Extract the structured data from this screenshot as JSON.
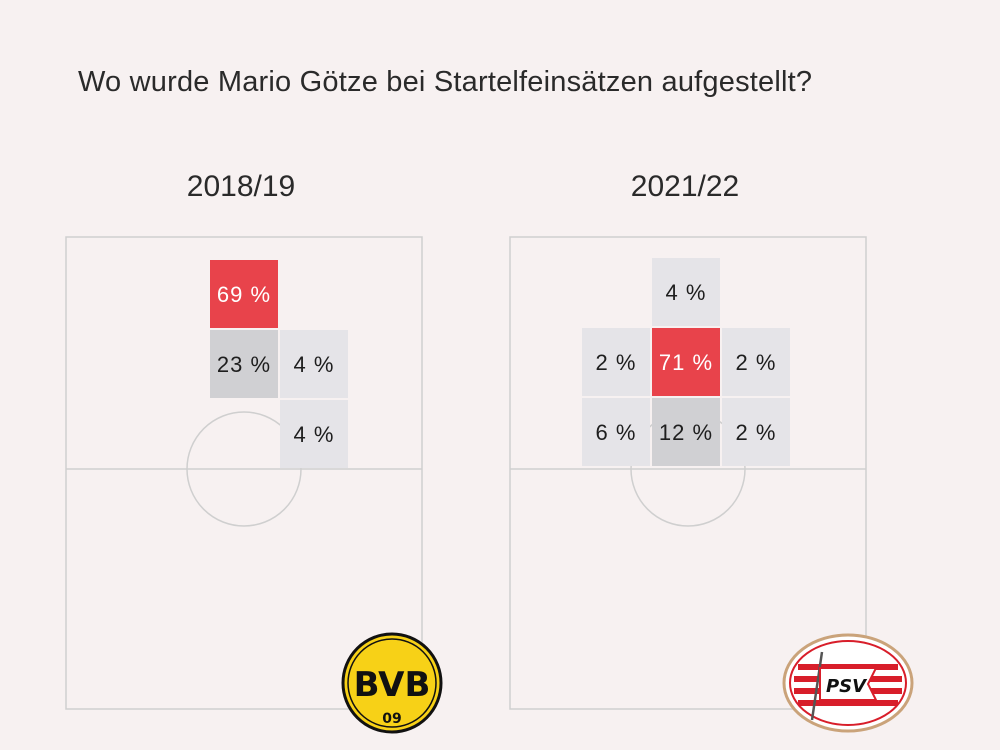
{
  "title": "Wo wurde Mario Götze bei Startelfeinsätzen aufgestellt?",
  "colors": {
    "highlight": "#e8434b",
    "medium": "#d0d0d3",
    "light": "#e5e4e8",
    "background": "#f7f1f1",
    "pitch_line": "#cfcfcf",
    "bvb_yellow": "#f7d117",
    "psv_red": "#d81e2a"
  },
  "chart_data": [
    {
      "type": "heatmap",
      "title": "2018/19",
      "team_logo": "BVB 09",
      "cells": [
        {
          "col": 0,
          "row": 0,
          "label": "69 %",
          "value": 69,
          "shade": "highlight"
        },
        {
          "col": 0,
          "row": 1,
          "label": "23 %",
          "value": 23,
          "shade": "medium"
        },
        {
          "col": 1,
          "row": 1,
          "label": "4 %",
          "value": 4,
          "shade": "light"
        },
        {
          "col": 1,
          "row": 2,
          "label": "4 %",
          "value": 4,
          "shade": "light"
        }
      ]
    },
    {
      "type": "heatmap",
      "title": "2021/22",
      "team_logo": "PSV",
      "cells": [
        {
          "col": 1,
          "row": 0,
          "label": "4 %",
          "value": 4,
          "shade": "light"
        },
        {
          "col": 0,
          "row": 1,
          "label": "2 %",
          "value": 2,
          "shade": "light"
        },
        {
          "col": 1,
          "row": 1,
          "label": "71 %",
          "value": 71,
          "shade": "highlight"
        },
        {
          "col": 2,
          "row": 1,
          "label": "2 %",
          "value": 2,
          "shade": "light"
        },
        {
          "col": 0,
          "row": 2,
          "label": "6 %",
          "value": 6,
          "shade": "light"
        },
        {
          "col": 1,
          "row": 2,
          "label": "12 %",
          "value": 12,
          "shade": "medium"
        },
        {
          "col": 2,
          "row": 2,
          "label": "2 %",
          "value": 2,
          "shade": "light"
        }
      ]
    }
  ]
}
